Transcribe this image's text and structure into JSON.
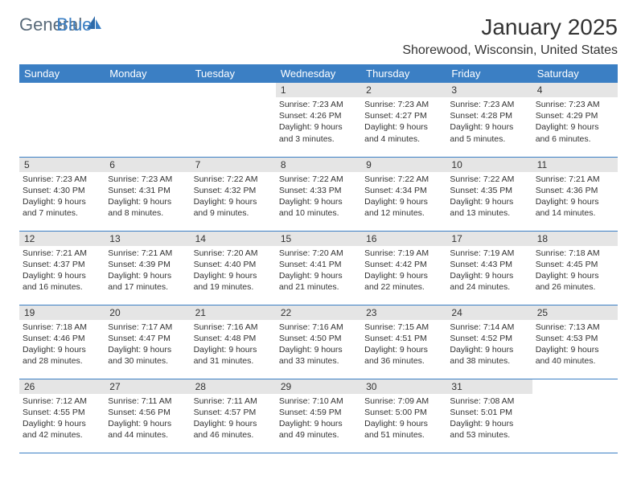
{
  "logo": {
    "text_a": "General",
    "text_b": "Blue"
  },
  "header": {
    "month_title": "January 2025",
    "location": "Shorewood, Wisconsin, United States"
  },
  "colors": {
    "header_bg": "#3b7fc4",
    "header_text": "#ffffff",
    "daynum_bg": "#e5e5e5",
    "row_border": "#3b7fc4",
    "logo_gray": "#5a6b7a",
    "logo_blue": "#3b7fc4"
  },
  "weekdays": [
    "Sunday",
    "Monday",
    "Tuesday",
    "Wednesday",
    "Thursday",
    "Friday",
    "Saturday"
  ],
  "weeks": [
    [
      {
        "n": "",
        "lines": []
      },
      {
        "n": "",
        "lines": []
      },
      {
        "n": "",
        "lines": []
      },
      {
        "n": "1",
        "lines": [
          "Sunrise: 7:23 AM",
          "Sunset: 4:26 PM",
          "Daylight: 9 hours",
          "and 3 minutes."
        ]
      },
      {
        "n": "2",
        "lines": [
          "Sunrise: 7:23 AM",
          "Sunset: 4:27 PM",
          "Daylight: 9 hours",
          "and 4 minutes."
        ]
      },
      {
        "n": "3",
        "lines": [
          "Sunrise: 7:23 AM",
          "Sunset: 4:28 PM",
          "Daylight: 9 hours",
          "and 5 minutes."
        ]
      },
      {
        "n": "4",
        "lines": [
          "Sunrise: 7:23 AM",
          "Sunset: 4:29 PM",
          "Daylight: 9 hours",
          "and 6 minutes."
        ]
      }
    ],
    [
      {
        "n": "5",
        "lines": [
          "Sunrise: 7:23 AM",
          "Sunset: 4:30 PM",
          "Daylight: 9 hours",
          "and 7 minutes."
        ]
      },
      {
        "n": "6",
        "lines": [
          "Sunrise: 7:23 AM",
          "Sunset: 4:31 PM",
          "Daylight: 9 hours",
          "and 8 minutes."
        ]
      },
      {
        "n": "7",
        "lines": [
          "Sunrise: 7:22 AM",
          "Sunset: 4:32 PM",
          "Daylight: 9 hours",
          "and 9 minutes."
        ]
      },
      {
        "n": "8",
        "lines": [
          "Sunrise: 7:22 AM",
          "Sunset: 4:33 PM",
          "Daylight: 9 hours",
          "and 10 minutes."
        ]
      },
      {
        "n": "9",
        "lines": [
          "Sunrise: 7:22 AM",
          "Sunset: 4:34 PM",
          "Daylight: 9 hours",
          "and 12 minutes."
        ]
      },
      {
        "n": "10",
        "lines": [
          "Sunrise: 7:22 AM",
          "Sunset: 4:35 PM",
          "Daylight: 9 hours",
          "and 13 minutes."
        ]
      },
      {
        "n": "11",
        "lines": [
          "Sunrise: 7:21 AM",
          "Sunset: 4:36 PM",
          "Daylight: 9 hours",
          "and 14 minutes."
        ]
      }
    ],
    [
      {
        "n": "12",
        "lines": [
          "Sunrise: 7:21 AM",
          "Sunset: 4:37 PM",
          "Daylight: 9 hours",
          "and 16 minutes."
        ]
      },
      {
        "n": "13",
        "lines": [
          "Sunrise: 7:21 AM",
          "Sunset: 4:39 PM",
          "Daylight: 9 hours",
          "and 17 minutes."
        ]
      },
      {
        "n": "14",
        "lines": [
          "Sunrise: 7:20 AM",
          "Sunset: 4:40 PM",
          "Daylight: 9 hours",
          "and 19 minutes."
        ]
      },
      {
        "n": "15",
        "lines": [
          "Sunrise: 7:20 AM",
          "Sunset: 4:41 PM",
          "Daylight: 9 hours",
          "and 21 minutes."
        ]
      },
      {
        "n": "16",
        "lines": [
          "Sunrise: 7:19 AM",
          "Sunset: 4:42 PM",
          "Daylight: 9 hours",
          "and 22 minutes."
        ]
      },
      {
        "n": "17",
        "lines": [
          "Sunrise: 7:19 AM",
          "Sunset: 4:43 PM",
          "Daylight: 9 hours",
          "and 24 minutes."
        ]
      },
      {
        "n": "18",
        "lines": [
          "Sunrise: 7:18 AM",
          "Sunset: 4:45 PM",
          "Daylight: 9 hours",
          "and 26 minutes."
        ]
      }
    ],
    [
      {
        "n": "19",
        "lines": [
          "Sunrise: 7:18 AM",
          "Sunset: 4:46 PM",
          "Daylight: 9 hours",
          "and 28 minutes."
        ]
      },
      {
        "n": "20",
        "lines": [
          "Sunrise: 7:17 AM",
          "Sunset: 4:47 PM",
          "Daylight: 9 hours",
          "and 30 minutes."
        ]
      },
      {
        "n": "21",
        "lines": [
          "Sunrise: 7:16 AM",
          "Sunset: 4:48 PM",
          "Daylight: 9 hours",
          "and 31 minutes."
        ]
      },
      {
        "n": "22",
        "lines": [
          "Sunrise: 7:16 AM",
          "Sunset: 4:50 PM",
          "Daylight: 9 hours",
          "and 33 minutes."
        ]
      },
      {
        "n": "23",
        "lines": [
          "Sunrise: 7:15 AM",
          "Sunset: 4:51 PM",
          "Daylight: 9 hours",
          "and 36 minutes."
        ]
      },
      {
        "n": "24",
        "lines": [
          "Sunrise: 7:14 AM",
          "Sunset: 4:52 PM",
          "Daylight: 9 hours",
          "and 38 minutes."
        ]
      },
      {
        "n": "25",
        "lines": [
          "Sunrise: 7:13 AM",
          "Sunset: 4:53 PM",
          "Daylight: 9 hours",
          "and 40 minutes."
        ]
      }
    ],
    [
      {
        "n": "26",
        "lines": [
          "Sunrise: 7:12 AM",
          "Sunset: 4:55 PM",
          "Daylight: 9 hours",
          "and 42 minutes."
        ]
      },
      {
        "n": "27",
        "lines": [
          "Sunrise: 7:11 AM",
          "Sunset: 4:56 PM",
          "Daylight: 9 hours",
          "and 44 minutes."
        ]
      },
      {
        "n": "28",
        "lines": [
          "Sunrise: 7:11 AM",
          "Sunset: 4:57 PM",
          "Daylight: 9 hours",
          "and 46 minutes."
        ]
      },
      {
        "n": "29",
        "lines": [
          "Sunrise: 7:10 AM",
          "Sunset: 4:59 PM",
          "Daylight: 9 hours",
          "and 49 minutes."
        ]
      },
      {
        "n": "30",
        "lines": [
          "Sunrise: 7:09 AM",
          "Sunset: 5:00 PM",
          "Daylight: 9 hours",
          "and 51 minutes."
        ]
      },
      {
        "n": "31",
        "lines": [
          "Sunrise: 7:08 AM",
          "Sunset: 5:01 PM",
          "Daylight: 9 hours",
          "and 53 minutes."
        ]
      },
      {
        "n": "",
        "lines": []
      }
    ]
  ]
}
